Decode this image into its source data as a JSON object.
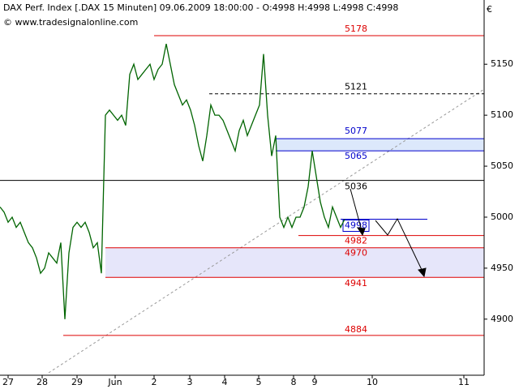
{
  "chart_data": {
    "type": "line",
    "title": "DAX Perf. Index [.DAX  15 Minuten] 09.06.2009 18:00:00 - O:4998 H:4998 L:4998 C:4998",
    "subtitle": "© www.tradesignalonline.com",
    "y_unit": "€",
    "xlim": [
      0,
      119.4
    ],
    "ylim": [
      4845,
      5209
    ],
    "xticks": [
      {
        "value": 2,
        "label": "27"
      },
      {
        "value": 10.4,
        "label": "28"
      },
      {
        "value": 19,
        "label": "29"
      },
      {
        "value": 28.4,
        "label": "Jun"
      },
      {
        "value": 38,
        "label": "2"
      },
      {
        "value": 46.8,
        "label": "3"
      },
      {
        "value": 55.4,
        "label": "4"
      },
      {
        "value": 63.8,
        "label": "5"
      },
      {
        "value": 72.4,
        "label": "8"
      },
      {
        "value": 77.6,
        "label": "9"
      },
      {
        "value": 91.8,
        "label": "10"
      },
      {
        "value": 114.4,
        "label": "11"
      }
    ],
    "yticks": [
      4900,
      4950,
      5000,
      5050,
      5100,
      5150
    ],
    "series": [
      {
        "name": "DAX",
        "color": "#006400",
        "x": [
          0,
          1,
          2,
          3,
          4,
          5,
          6,
          7,
          8,
          9,
          10,
          11,
          12,
          13,
          14,
          15,
          16,
          17,
          18,
          19,
          20,
          21,
          22,
          23,
          24,
          25,
          26,
          27,
          28,
          29,
          30,
          31,
          32,
          33,
          34,
          35,
          36,
          37,
          38,
          39,
          40,
          41,
          42,
          43,
          44,
          45,
          46,
          47,
          48,
          49,
          50,
          51,
          52,
          53,
          54,
          55,
          56,
          57,
          58,
          59,
          60,
          61,
          62,
          63,
          64,
          65,
          66,
          67,
          68,
          69,
          70,
          71,
          72,
          73,
          74,
          75,
          76,
          77,
          78,
          79,
          80,
          81,
          82,
          83,
          84,
          85
        ],
        "values": [
          5010,
          5005,
          4995,
          5000,
          4990,
          4995,
          4985,
          4975,
          4970,
          4960,
          4945,
          4950,
          4965,
          4960,
          4955,
          4975,
          4900,
          4965,
          4990,
          4995,
          4990,
          4995,
          4985,
          4970,
          4975,
          4945,
          5100,
          5105,
          5100,
          5095,
          5100,
          5090,
          5140,
          5150,
          5135,
          5140,
          5145,
          5150,
          5135,
          5145,
          5150,
          5170,
          5150,
          5130,
          5120,
          5110,
          5115,
          5105,
          5090,
          5070,
          5055,
          5080,
          5110,
          5100,
          5100,
          5095,
          5085,
          5075,
          5065,
          5085,
          5095,
          5080,
          5090,
          5100,
          5110,
          5160,
          5100,
          5060,
          5080,
          5000,
          4990,
          5000,
          4990,
          5000,
          5000,
          5010,
          5030,
          5065,
          5040,
          5015,
          5000,
          4990,
          5010,
          5000,
          4990,
          4998
        ]
      }
    ],
    "levels": [
      {
        "value": 5178,
        "color": "#dd0000",
        "x0": 38
      },
      {
        "value": 5121,
        "color": "#000000",
        "x0": 51.6,
        "dashed": true
      },
      {
        "value": 5077,
        "color": "#0000cc",
        "x0": 68,
        "fill": "#dce8fb"
      },
      {
        "value": 5065,
        "color": "#0000cc",
        "x0": 68
      },
      {
        "value": 5036,
        "color": "#000000",
        "x0": 0
      },
      {
        "value": 4998,
        "color": "#0000cc",
        "x0": 84,
        "x1": 105.4
      },
      {
        "value": 4982,
        "color": "#dd0000",
        "x0": 73.6
      },
      {
        "value": 4970,
        "color": "#dd0000",
        "x0": 26,
        "fill": "#e6e6fa"
      },
      {
        "value": 4941,
        "color": "#dd0000",
        "x0": 26
      },
      {
        "value": 4884,
        "color": "#dd0000",
        "x0": 15.6
      }
    ]
  }
}
